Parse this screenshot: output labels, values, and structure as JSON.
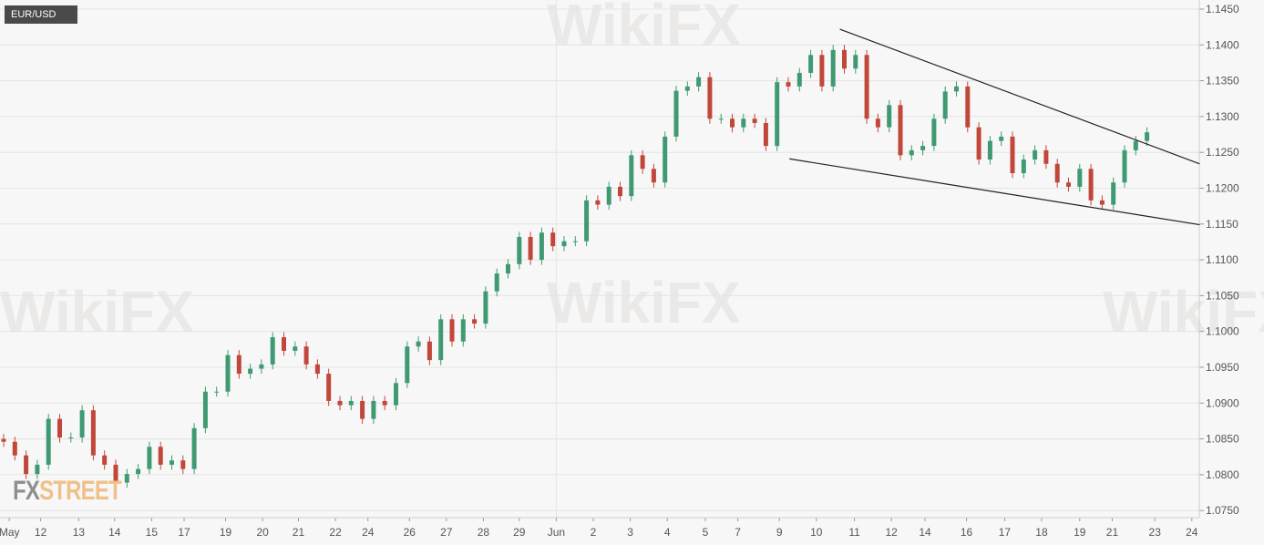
{
  "symbol": "EUR/USD",
  "logo": {
    "fx": "FX",
    "street": "STREET"
  },
  "watermark": "WikiFX",
  "colors": {
    "up": "#3f9a72",
    "down": "#c0473a",
    "grid": "#e4e4e4",
    "trendline": "#222222"
  },
  "chart_data": {
    "type": "candlestick",
    "title": "EUR/USD",
    "ylim": [
      1.0725,
      1.1465
    ],
    "yticks": [
      "1.1450",
      "1.1400",
      "1.1350",
      "1.1300",
      "1.1250",
      "1.1200",
      "1.1150",
      "1.1100",
      "1.1050",
      "1.1000",
      "1.0950",
      "1.0900",
      "1.0850",
      "1.0800",
      "1.0750"
    ],
    "xticks": [
      {
        "label": "May",
        "at": 0.5
      },
      {
        "label": "12",
        "at": 3.3
      },
      {
        "label": "13",
        "at": 6.7
      },
      {
        "label": "14",
        "at": 9.9
      },
      {
        "label": "15",
        "at": 13.2
      },
      {
        "label": "17",
        "at": 16.1
      },
      {
        "label": "19",
        "at": 19.8
      },
      {
        "label": "20",
        "at": 23.1
      },
      {
        "label": "21",
        "at": 26.3
      },
      {
        "label": "22",
        "at": 29.6
      },
      {
        "label": "24",
        "at": 32.5
      },
      {
        "label": "26",
        "at": 36.2
      },
      {
        "label": "27",
        "at": 39.5
      },
      {
        "label": "28",
        "at": 42.8
      },
      {
        "label": "29",
        "at": 46.0
      },
      {
        "label": "Jun",
        "at": 49.3
      },
      {
        "label": "2",
        "at": 52.6
      },
      {
        "label": "3",
        "at": 55.9
      },
      {
        "label": "4",
        "at": 59.2
      },
      {
        "label": "5",
        "at": 62.6
      },
      {
        "label": "7",
        "at": 65.5
      },
      {
        "label": "9",
        "at": 69.2
      },
      {
        "label": "10",
        "at": 72.5
      },
      {
        "label": "11",
        "at": 75.9
      },
      {
        "label": "12",
        "at": 79.2
      },
      {
        "label": "14",
        "at": 82.2
      },
      {
        "label": "16",
        "at": 85.9
      },
      {
        "label": "17",
        "at": 89.3
      },
      {
        "label": "18",
        "at": 92.6
      },
      {
        "label": "19",
        "at": 96.0
      },
      {
        "label": "21",
        "at": 98.9
      },
      {
        "label": "23",
        "at": 102.7
      },
      {
        "label": "24",
        "at": 106.0
      }
    ],
    "first_open": 1.085,
    "close": [
      1.0846,
      1.0827,
      1.0801,
      1.0814,
      1.0878,
      1.0852,
      1.0852,
      1.089,
      1.0827,
      1.0814,
      1.0789,
      1.0801,
      1.0808,
      1.0839,
      1.0814,
      1.082,
      1.0808,
      1.0865,
      1.0916,
      1.0916,
      1.0967,
      1.0941,
      1.0948,
      1.0954,
      1.0992,
      1.0973,
      1.0979,
      1.0954,
      1.0941,
      1.0903,
      1.0897,
      1.0903,
      1.0878,
      1.0903,
      1.0897,
      1.0928,
      1.0979,
      1.0986,
      1.096,
      1.1017,
      1.0986,
      1.1017,
      1.1011,
      1.1056,
      1.1081,
      1.1094,
      1.1132,
      1.11,
      1.1138,
      1.1119,
      1.1126,
      1.1126,
      1.1183,
      1.1177,
      1.1202,
      1.1189,
      1.1246,
      1.1227,
      1.1208,
      1.1272,
      1.1336,
      1.1342,
      1.1355,
      1.1297,
      1.1297,
      1.1285,
      1.1297,
      1.1291,
      1.1259,
      1.1348,
      1.1342,
      1.1361,
      1.1386,
      1.1342,
      1.1393,
      1.1367,
      1.1386,
      1.1297,
      1.1285,
      1.1316,
      1.1246,
      1.1253,
      1.1259,
      1.1297,
      1.1335,
      1.1342,
      1.1285,
      1.124,
      1.1266,
      1.1272,
      1.1221,
      1.124,
      1.1253,
      1.1234,
      1.1208,
      1.1202,
      1.1227,
      1.1183,
      1.1177,
      1.1208,
      1.1253,
      1.1266,
      1.1278
    ],
    "trendlines": [
      {
        "from": [
          74.6,
          1.1422
        ],
        "to": [
          106.7,
          1.1234
        ]
      },
      {
        "from": [
          70.1,
          1.1241
        ],
        "to": [
          106.7,
          1.1149
        ]
      }
    ],
    "grid": true
  }
}
